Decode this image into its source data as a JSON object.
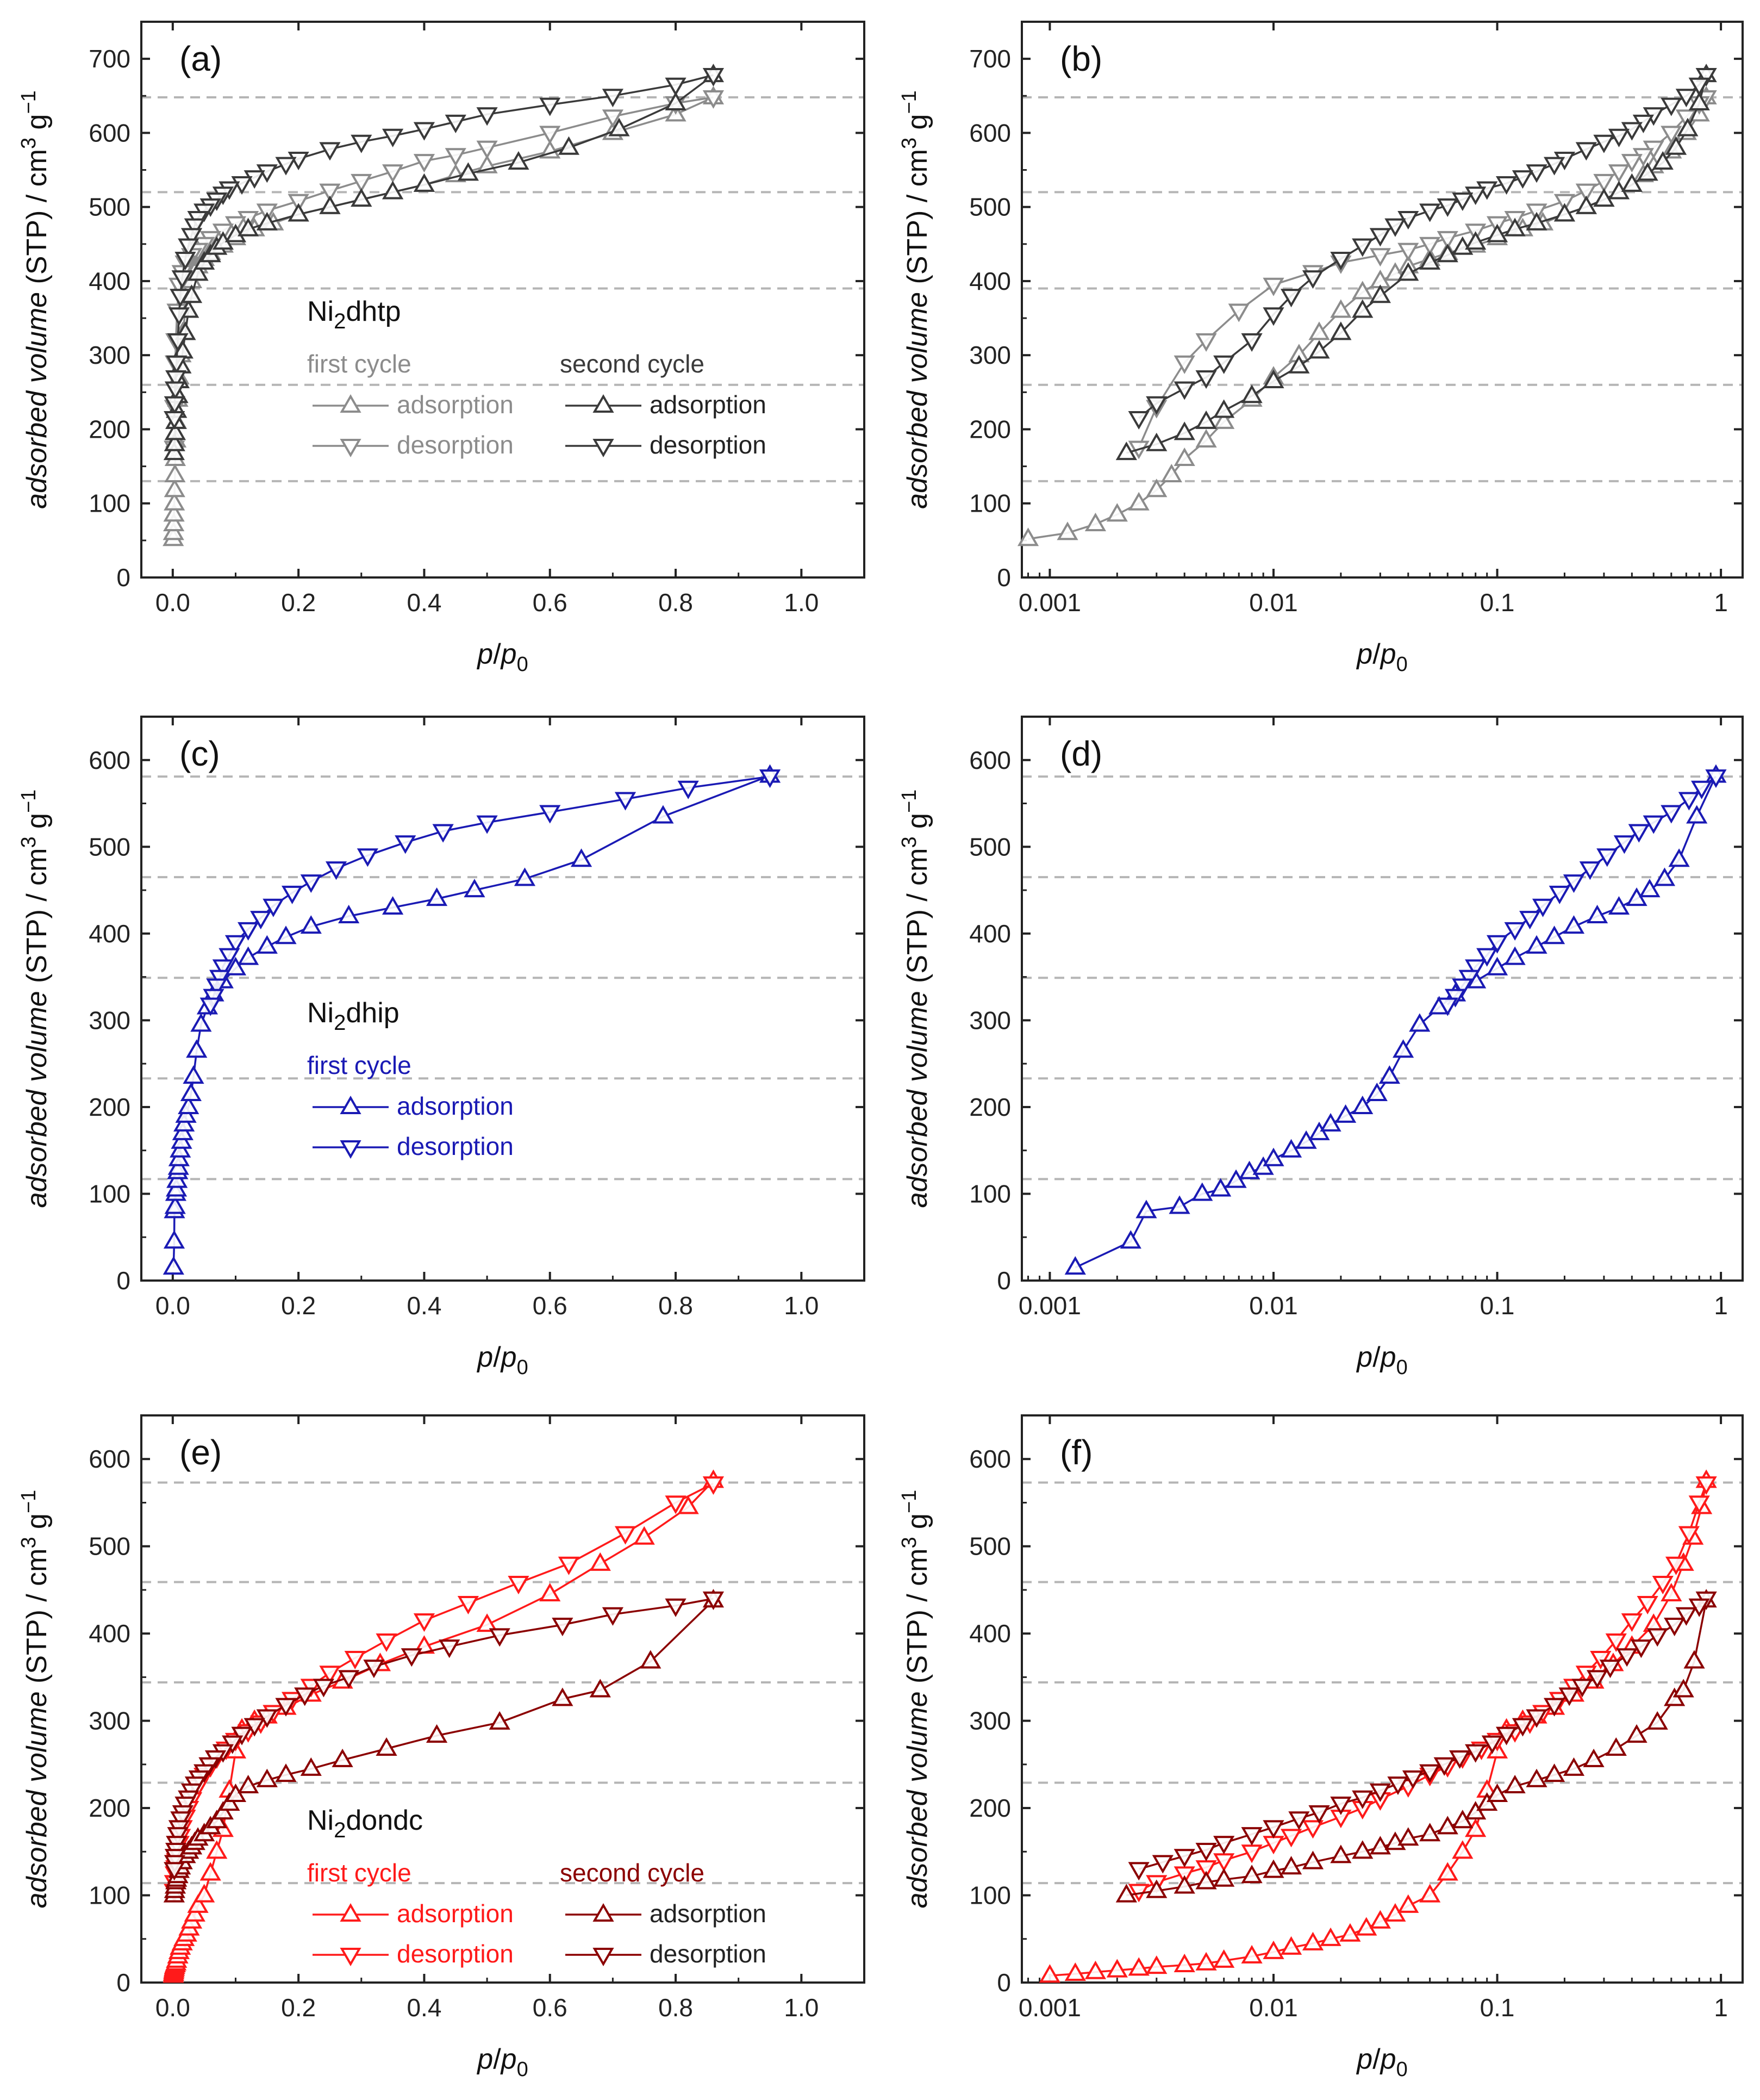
{
  "chart_data": [
    {
      "panel": "(a)",
      "type": "line",
      "xscale": "linear",
      "xlim": [
        -0.05,
        1.1
      ],
      "ylim": [
        0,
        750
      ],
      "xticks": [
        0.0,
        0.2,
        0.4,
        0.6,
        0.8,
        1.0
      ],
      "xtick_labels": [
        "0.0",
        "0.2",
        "0.4",
        "0.6",
        "0.8",
        "1.0"
      ],
      "yticks": [
        0,
        100,
        200,
        300,
        400,
        500,
        600,
        700
      ],
      "xlabel": "p/p0",
      "ylabel": "adsorbed volume (STP) / cm3 g−1",
      "xlabel_parts": [
        "p",
        "/",
        "p",
        "0"
      ],
      "ylabel_parts": [
        "adsorbed volume",
        " (STP) / cm",
        "3",
        " g",
        "−1"
      ],
      "reference_lines": [
        130,
        260,
        390,
        520,
        648
      ],
      "legend": {
        "material_parts": [
          "Ni",
          "2",
          "dhtp"
        ],
        "first_cycle": "first cycle",
        "second_cycle": "second cycle",
        "adsorption": "adsorption",
        "desorption": "desorption"
      },
      "series": [
        {
          "name": "first cycle adsorption",
          "color": "#8c8c8c",
          "marker": "up",
          "x": [
            0.0008,
            0.0012,
            0.0016,
            0.002,
            0.0025,
            0.003,
            0.0035,
            0.004,
            0.005,
            0.006,
            0.008,
            0.01,
            0.013,
            0.016,
            0.02,
            0.025,
            0.03,
            0.035,
            0.04,
            0.05,
            0.06,
            0.08,
            0.1,
            0.13,
            0.16,
            0.2,
            0.25,
            0.3,
            0.35,
            0.4,
            0.45,
            0.5,
            0.6,
            0.7,
            0.8,
            0.86
          ],
          "y": [
            52,
            60,
            72,
            85,
            100,
            118,
            138,
            160,
            185,
            210,
            240,
            270,
            300,
            330,
            360,
            385,
            400,
            410,
            420,
            430,
            438,
            448,
            458,
            470,
            478,
            490,
            500,
            510,
            520,
            530,
            543,
            555,
            575,
            600,
            625,
            648
          ]
        },
        {
          "name": "first cycle desorption",
          "color": "#8c8c8c",
          "marker": "down",
          "x": [
            0.86,
            0.8,
            0.7,
            0.6,
            0.5,
            0.45,
            0.4,
            0.35,
            0.3,
            0.25,
            0.2,
            0.15,
            0.12,
            0.1,
            0.08,
            0.06,
            0.05,
            0.04,
            0.03,
            0.02,
            0.015,
            0.01,
            0.007,
            0.005,
            0.004,
            0.003,
            0.0025
          ],
          "y": [
            648,
            640,
            622,
            600,
            580,
            570,
            562,
            548,
            535,
            522,
            508,
            495,
            485,
            478,
            468,
            458,
            450,
            442,
            435,
            425,
            412,
            395,
            360,
            320,
            290,
            230,
            175
          ]
        },
        {
          "name": "second cycle adsorption",
          "color": "#3a3a3a",
          "marker": "up",
          "x": [
            0.0022,
            0.003,
            0.004,
            0.005,
            0.006,
            0.008,
            0.01,
            0.013,
            0.016,
            0.02,
            0.025,
            0.03,
            0.04,
            0.05,
            0.06,
            0.07,
            0.08,
            0.1,
            0.12,
            0.15,
            0.2,
            0.25,
            0.3,
            0.35,
            0.4,
            0.47,
            0.55,
            0.63,
            0.71,
            0.8,
            0.86
          ],
          "y": [
            168,
            180,
            195,
            210,
            225,
            245,
            265,
            285,
            305,
            330,
            360,
            380,
            410,
            425,
            435,
            445,
            452,
            462,
            470,
            478,
            490,
            500,
            510,
            520,
            530,
            545,
            560,
            580,
            605,
            640,
            678
          ]
        },
        {
          "name": "second cycle desorption",
          "color": "#3a3a3a",
          "marker": "down",
          "x": [
            0.86,
            0.8,
            0.7,
            0.6,
            0.5,
            0.45,
            0.4,
            0.35,
            0.3,
            0.25,
            0.2,
            0.18,
            0.15,
            0.13,
            0.11,
            0.09,
            0.08,
            0.07,
            0.06,
            0.05,
            0.04,
            0.035,
            0.03,
            0.025,
            0.02,
            0.015,
            0.012,
            0.01,
            0.008,
            0.006,
            0.005,
            0.004,
            0.003,
            0.0025
          ],
          "y": [
            678,
            665,
            650,
            638,
            625,
            615,
            605,
            596,
            588,
            578,
            565,
            558,
            548,
            540,
            532,
            525,
            518,
            510,
            502,
            495,
            485,
            475,
            462,
            448,
            430,
            405,
            380,
            355,
            320,
            290,
            270,
            255,
            235,
            215
          ]
        }
      ]
    },
    {
      "panel": "(b)",
      "type": "line",
      "xscale": "log",
      "xlim": [
        0.00075,
        1.25
      ],
      "ylim": [
        0,
        750
      ],
      "xticks": [
        0.001,
        0.01,
        0.1,
        1
      ],
      "xtick_labels": [
        "0.001",
        "0.01",
        "0.1",
        "1"
      ],
      "yticks": [
        0,
        100,
        200,
        300,
        400,
        500,
        600,
        700
      ],
      "xlabel": "p/p0",
      "ylabel": "adsorbed volume (STP) / cm3 g−1",
      "xlabel_parts": [
        "p",
        "/",
        "p",
        "0"
      ],
      "ylabel_parts": [
        "adsorbed volume",
        " (STP) / cm",
        "3",
        " g",
        "−1"
      ],
      "reference_lines": [
        130,
        260,
        390,
        520,
        648
      ],
      "series": "same as (a)"
    },
    {
      "panel": "(c)",
      "type": "line",
      "xscale": "linear",
      "xlim": [
        -0.05,
        1.1
      ],
      "ylim": [
        0,
        650
      ],
      "xticks": [
        0.0,
        0.2,
        0.4,
        0.6,
        0.8,
        1.0
      ],
      "xtick_labels": [
        "0.0",
        "0.2",
        "0.4",
        "0.6",
        "0.8",
        "1.0"
      ],
      "yticks": [
        0,
        100,
        200,
        300,
        400,
        500,
        600
      ],
      "xlabel": "p/p0",
      "ylabel": "adsorbed volume (STP) / cm3 g−1",
      "xlabel_parts": [
        "p",
        "/",
        "p",
        "0"
      ],
      "ylabel_parts": [
        "adsorbed volume",
        " (STP) / cm",
        "3",
        " g",
        "−1"
      ],
      "reference_lines": [
        117,
        233,
        349,
        465,
        581
      ],
      "legend": {
        "material_parts": [
          "Ni",
          "2",
          "dhip"
        ],
        "first_cycle": "first cycle",
        "adsorption": "adsorption",
        "desorption": "desorption"
      },
      "series": [
        {
          "name": "first cycle adsorption",
          "color": "#1a1ab4",
          "marker": "up",
          "x": [
            0.0013,
            0.0023,
            0.0027,
            0.0038,
            0.0048,
            0.0058,
            0.0068,
            0.0078,
            0.009,
            0.01,
            0.012,
            0.014,
            0.016,
            0.018,
            0.021,
            0.025,
            0.029,
            0.033,
            0.038,
            0.045,
            0.055,
            0.065,
            0.08,
            0.1,
            0.12,
            0.15,
            0.18,
            0.22,
            0.28,
            0.35,
            0.42,
            0.48,
            0.56,
            0.65,
            0.78,
            0.95
          ],
          "y": [
            15,
            45,
            80,
            85,
            100,
            105,
            115,
            125,
            130,
            140,
            150,
            160,
            170,
            180,
            190,
            200,
            215,
            235,
            265,
            295,
            315,
            330,
            345,
            360,
            372,
            385,
            396,
            408,
            420,
            430,
            440,
            450,
            463,
            485,
            535,
            582
          ]
        },
        {
          "name": "first cycle desorption",
          "color": "#1a1ab4",
          "marker": "down",
          "x": [
            0.95,
            0.82,
            0.72,
            0.6,
            0.5,
            0.43,
            0.37,
            0.31,
            0.26,
            0.22,
            0.19,
            0.16,
            0.14,
            0.12,
            0.1,
            0.09,
            0.08,
            0.075,
            0.07,
            0.065,
            0.06
          ],
          "y": [
            581,
            568,
            555,
            540,
            528,
            518,
            505,
            490,
            475,
            460,
            447,
            432,
            418,
            405,
            390,
            375,
            362,
            350,
            340,
            328,
            318
          ]
        }
      ]
    },
    {
      "panel": "(d)",
      "type": "line",
      "xscale": "log",
      "xlim": [
        0.00075,
        1.25
      ],
      "ylim": [
        0,
        650
      ],
      "xticks": [
        0.001,
        0.01,
        0.1,
        1
      ],
      "xtick_labels": [
        "0.001",
        "0.01",
        "0.1",
        "1"
      ],
      "yticks": [
        0,
        100,
        200,
        300,
        400,
        500,
        600
      ],
      "xlabel": "p/p0",
      "ylabel": "adsorbed volume (STP) / cm3 g−1",
      "xlabel_parts": [
        "p",
        "/",
        "p",
        "0"
      ],
      "ylabel_parts": [
        "adsorbed volume",
        " (STP) / cm",
        "3",
        " g",
        "−1"
      ],
      "reference_lines": [
        117,
        233,
        349,
        465,
        581
      ],
      "series": "same as (c)"
    },
    {
      "panel": "(e)",
      "type": "line",
      "xscale": "linear",
      "xlim": [
        -0.05,
        1.1
      ],
      "ylim": [
        0,
        650
      ],
      "xticks": [
        0.0,
        0.2,
        0.4,
        0.6,
        0.8,
        1.0
      ],
      "xtick_labels": [
        "0.0",
        "0.2",
        "0.4",
        "0.6",
        "0.8",
        "1.0"
      ],
      "yticks": [
        0,
        100,
        200,
        300,
        400,
        500,
        600
      ],
      "xlabel": "p/p0",
      "ylabel": "adsorbed volume (STP) / cm3 g−1",
      "xlabel_parts": [
        "p",
        "/",
        "p",
        "0"
      ],
      "ylabel_parts": [
        "adsorbed volume",
        " (STP) / cm",
        "3",
        " g",
        "−1"
      ],
      "reference_lines": [
        114,
        229,
        344,
        459,
        573
      ],
      "legend": {
        "material_parts": [
          "Ni",
          "2",
          "dondc"
        ],
        "first_cycle": "first cycle",
        "second_cycle": "second cycle",
        "adsorption": "adsorption",
        "desorption": "desorption"
      },
      "series": [
        {
          "name": "first cycle adsorption",
          "color": "#ff1a1a",
          "marker": "up",
          "x": [
            0.001,
            0.0013,
            0.0016,
            0.002,
            0.0025,
            0.003,
            0.004,
            0.005,
            0.006,
            0.008,
            0.01,
            0.012,
            0.015,
            0.018,
            0.022,
            0.026,
            0.03,
            0.035,
            0.04,
            0.05,
            0.06,
            0.07,
            0.08,
            0.09,
            0.1,
            0.11,
            0.13,
            0.15,
            0.18,
            0.22,
            0.27,
            0.33,
            0.4,
            0.5,
            0.6,
            0.68,
            0.75,
            0.82,
            0.86
          ],
          "y": [
            8,
            10,
            12,
            14,
            16,
            18,
            20,
            22,
            25,
            30,
            35,
            40,
            45,
            50,
            55,
            62,
            70,
            78,
            88,
            100,
            125,
            150,
            175,
            220,
            265,
            290,
            300,
            305,
            315,
            330,
            345,
            365,
            385,
            410,
            445,
            480,
            510,
            545,
            575
          ]
        },
        {
          "name": "first cycle desorption",
          "color": "#ff1a1a",
          "marker": "down",
          "x": [
            0.86,
            0.8,
            0.72,
            0.63,
            0.55,
            0.47,
            0.4,
            0.34,
            0.29,
            0.25,
            0.22,
            0.19,
            0.16,
            0.14,
            0.12,
            0.1,
            0.085,
            0.07,
            0.06,
            0.05,
            0.04,
            0.03,
            0.025,
            0.02,
            0.015,
            0.012,
            0.01,
            0.008,
            0.006,
            0.005,
            0.004,
            0.003,
            0.0025
          ],
          "y": [
            572,
            550,
            515,
            480,
            458,
            435,
            415,
            392,
            372,
            355,
            340,
            325,
            310,
            298,
            288,
            278,
            268,
            258,
            248,
            238,
            225,
            210,
            200,
            190,
            178,
            168,
            160,
            150,
            140,
            132,
            125,
            115,
            105
          ]
        },
        {
          "name": "second cycle adsorption",
          "color": "#8b0000",
          "marker": "up",
          "x": [
            0.0022,
            0.003,
            0.004,
            0.005,
            0.006,
            0.008,
            0.01,
            0.012,
            0.015,
            0.02,
            0.025,
            0.03,
            0.035,
            0.04,
            0.05,
            0.06,
            0.07,
            0.08,
            0.09,
            0.1,
            0.12,
            0.15,
            0.18,
            0.22,
            0.27,
            0.34,
            0.42,
            0.52,
            0.62,
            0.68,
            0.76,
            0.86
          ],
          "y": [
            100,
            105,
            110,
            115,
            118,
            122,
            128,
            132,
            138,
            145,
            150,
            155,
            160,
            165,
            170,
            178,
            185,
            195,
            205,
            215,
            225,
            232,
            238,
            245,
            255,
            268,
            283,
            298,
            325,
            335,
            368,
            438
          ]
        },
        {
          "name": "second cycle desorption",
          "color": "#8b0000",
          "marker": "down",
          "x": [
            0.86,
            0.8,
            0.7,
            0.62,
            0.52,
            0.44,
            0.38,
            0.32,
            0.28,
            0.24,
            0.21,
            0.18,
            0.15,
            0.13,
            0.11,
            0.095,
            0.08,
            0.068,
            0.058,
            0.05,
            0.042,
            0.036,
            0.03,
            0.025,
            0.02,
            0.016,
            0.013,
            0.01,
            0.008,
            0.006,
            0.005,
            0.004,
            0.0032,
            0.0025
          ],
          "y": [
            440,
            432,
            422,
            410,
            398,
            385,
            375,
            362,
            350,
            340,
            330,
            318,
            305,
            295,
            285,
            275,
            265,
            258,
            250,
            242,
            235,
            228,
            220,
            212,
            205,
            195,
            188,
            178,
            170,
            160,
            152,
            145,
            138,
            130
          ]
        }
      ]
    },
    {
      "panel": "(f)",
      "type": "line",
      "xscale": "log",
      "xlim": [
        0.00075,
        1.25
      ],
      "ylim": [
        0,
        650
      ],
      "xticks": [
        0.001,
        0.01,
        0.1,
        1
      ],
      "xtick_labels": [
        "0.001",
        "0.01",
        "0.1",
        "1"
      ],
      "yticks": [
        0,
        100,
        200,
        300,
        400,
        500,
        600
      ],
      "xlabel": "p/p0",
      "ylabel": "adsorbed volume (STP) / cm3 g−1",
      "xlabel_parts": [
        "p",
        "/",
        "p",
        "0"
      ],
      "ylabel_parts": [
        "adsorbed volume",
        " (STP) / cm",
        "3",
        " g",
        "−1"
      ],
      "reference_lines": [
        114,
        229,
        344,
        459,
        573
      ],
      "series": "same as (e)"
    }
  ]
}
